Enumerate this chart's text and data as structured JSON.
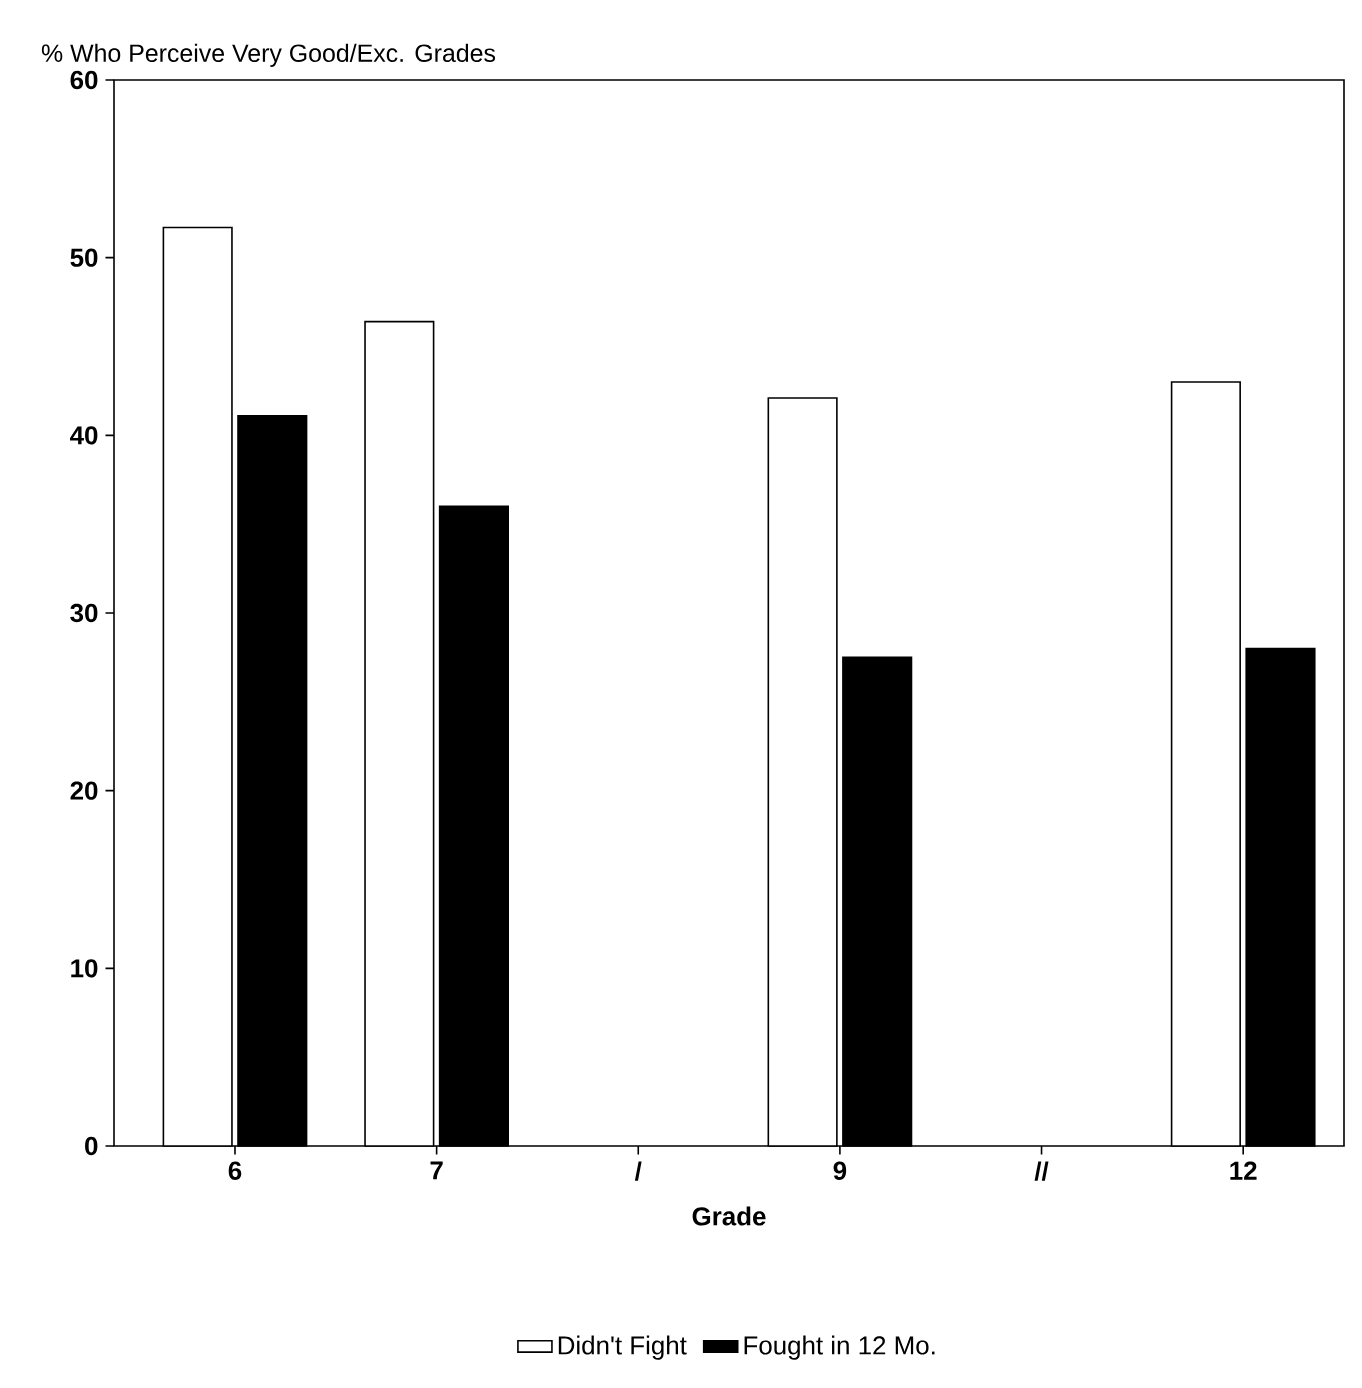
{
  "chart_data": {
    "type": "bar",
    "ylabel": "% Who Perceive Very Good/Exc. Grades",
    "xlabel": "Grade",
    "categories": [
      "6",
      "7",
      "/",
      "9",
      "//",
      "12"
    ],
    "series": [
      {
        "name": "Didn't Fight",
        "color": "#ffffff",
        "values": [
          51.7,
          46.4,
          null,
          42.1,
          null,
          43.0
        ]
      },
      {
        "name": "Fought in 12 Mo.",
        "color": "#000000",
        "values": [
          41.1,
          36.0,
          null,
          27.5,
          null,
          28.0
        ]
      }
    ],
    "ylim": [
      0,
      60
    ],
    "yticks": [
      0,
      10,
      20,
      30,
      40,
      50,
      60
    ],
    "legend": "bottom",
    "grid": false
  }
}
